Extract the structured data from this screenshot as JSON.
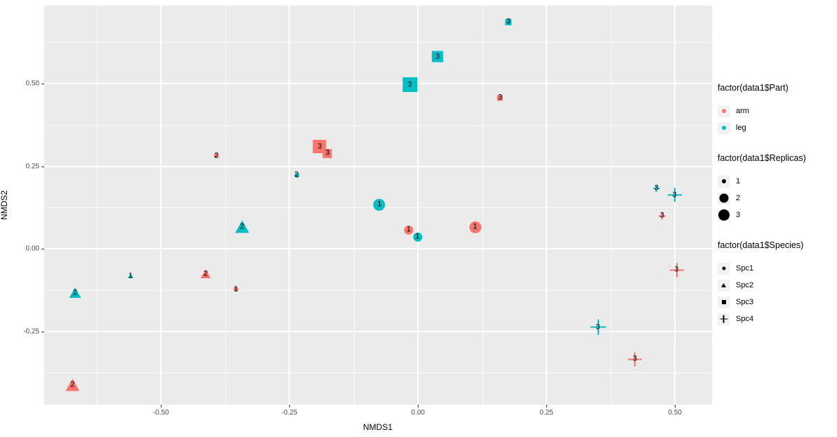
{
  "chart_data": {
    "type": "scatter",
    "title": "",
    "xlabel": "NMDS1",
    "ylabel": "NMDS2",
    "xlim": [
      -0.727,
      0.572
    ],
    "ylim": [
      -0.472,
      0.736
    ],
    "x_ticks": [
      -0.5,
      -0.25,
      0.0,
      0.25,
      0.5
    ],
    "x_tick_labels": [
      "-0.50",
      "-0.25",
      "0.00",
      "0.25",
      "0.50"
    ],
    "y_ticks": [
      0.5,
      0.25,
      0.0,
      -0.25
    ],
    "y_tick_labels": [
      "0.50",
      "0.25",
      "0.00",
      "-0.25"
    ],
    "x_minor": [
      -0.625,
      -0.375,
      -0.125,
      0.125,
      0.375
    ],
    "y_minor": [
      0.625,
      0.375,
      0.125,
      -0.125,
      -0.375
    ],
    "grid": "white major and minor gridlines on grey panel",
    "legend_position": "right",
    "colors": {
      "arm": "#F8766D",
      "leg": "#00BFC4",
      "panel_bg": "#EBEBEB",
      "legend_key_bg": "#F2F2F2",
      "axis_text": "#4D4D4D",
      "point_label": "#000000"
    },
    "points": [
      {
        "x": 0.176,
        "y": 0.687,
        "part": "leg",
        "species": "Spc3",
        "shape": "square",
        "size": 9,
        "label": "3"
      },
      {
        "x": 0.038,
        "y": 0.581,
        "part": "leg",
        "species": "Spc3",
        "shape": "square",
        "size": 16,
        "label": "3"
      },
      {
        "x": -0.016,
        "y": 0.496,
        "part": "leg",
        "species": "Spc3",
        "shape": "square",
        "size": 21,
        "label": "3"
      },
      {
        "x": 0.16,
        "y": 0.457,
        "part": "arm",
        "species": "Spc3",
        "shape": "square",
        "size": 8,
        "label": "3"
      },
      {
        "x": -0.191,
        "y": 0.309,
        "part": "arm",
        "species": "Spc3",
        "shape": "square",
        "size": 19,
        "label": "3"
      },
      {
        "x": -0.176,
        "y": 0.289,
        "part": "arm",
        "species": "Spc3",
        "shape": "square",
        "size": 13,
        "label": "3"
      },
      {
        "x": -0.392,
        "y": 0.281,
        "part": "arm",
        "species": "Spc1",
        "shape": "circle",
        "size": 7,
        "label": "2"
      },
      {
        "x": -0.236,
        "y": 0.223,
        "part": "leg",
        "species": "Spc1",
        "shape": "circle",
        "size": 7,
        "label": "2"
      },
      {
        "x": -0.075,
        "y": 0.134,
        "part": "leg",
        "species": "Spc1",
        "shape": "circle",
        "size": 17,
        "label": "1"
      },
      {
        "x": -0.018,
        "y": 0.057,
        "part": "arm",
        "species": "Spc1",
        "shape": "circle",
        "size": 13,
        "label": "1"
      },
      {
        "x": -0.001,
        "y": 0.036,
        "part": "leg",
        "species": "Spc1",
        "shape": "circle",
        "size": 13,
        "label": "1"
      },
      {
        "x": 0.111,
        "y": 0.066,
        "part": "arm",
        "species": "Spc1",
        "shape": "circle",
        "size": 17,
        "label": "1"
      },
      {
        "x": -0.342,
        "y": 0.066,
        "part": "leg",
        "species": "Spc2",
        "shape": "triangle",
        "size": 20,
        "label": "2"
      },
      {
        "x": -0.413,
        "y": -0.077,
        "part": "arm",
        "species": "Spc2",
        "shape": "triangle",
        "size": 15,
        "label": "2"
      },
      {
        "x": -0.559,
        "y": -0.083,
        "part": "leg",
        "species": "Spc2",
        "shape": "triangle",
        "size": 8,
        "label": "1"
      },
      {
        "x": -0.354,
        "y": -0.123,
        "part": "arm",
        "species": "Spc1",
        "shape": "circle",
        "size": 7,
        "label": "1"
      },
      {
        "x": -0.667,
        "y": -0.134,
        "part": "leg",
        "species": "Spc2",
        "shape": "triangle",
        "size": 17,
        "label": "2"
      },
      {
        "x": -0.672,
        "y": -0.413,
        "part": "arm",
        "species": "Spc2",
        "shape": "triangle",
        "size": 20,
        "label": "2"
      },
      {
        "x": 0.464,
        "y": 0.183,
        "part": "leg",
        "species": "Spc4",
        "shape": "plus",
        "size": 9,
        "label": "3"
      },
      {
        "x": 0.499,
        "y": 0.162,
        "part": "leg",
        "species": "Spc4",
        "shape": "plus",
        "size": 20,
        "label": "3"
      },
      {
        "x": 0.475,
        "y": 0.1,
        "part": "arm",
        "species": "Spc4",
        "shape": "plus",
        "size": 10,
        "label": "3"
      },
      {
        "x": 0.503,
        "y": -0.064,
        "part": "arm",
        "species": "Spc4",
        "shape": "plus",
        "size": 20,
        "label": "3"
      },
      {
        "x": 0.35,
        "y": -0.238,
        "part": "leg",
        "species": "Spc4",
        "shape": "plus",
        "size": 22,
        "label": "3"
      },
      {
        "x": 0.422,
        "y": -0.334,
        "part": "arm",
        "species": "Spc4",
        "shape": "plus",
        "size": 20,
        "label": "3"
      }
    ],
    "legends": [
      {
        "title": "factor(data1$Part)",
        "entries": [
          {
            "label": "arm",
            "glyph": "circle",
            "color": "#F8766D",
            "size": 6
          },
          {
            "label": "leg",
            "glyph": "circle",
            "color": "#00BFC4",
            "size": 6
          }
        ]
      },
      {
        "title": "factor(data1$Replicas)",
        "entries": [
          {
            "label": "1",
            "glyph": "circle",
            "color": "#000000",
            "size": 6
          },
          {
            "label": "2",
            "glyph": "circle",
            "color": "#000000",
            "size": 13
          },
          {
            "label": "3",
            "glyph": "circle",
            "color": "#000000",
            "size": 16
          }
        ]
      },
      {
        "title": "factor(data1$Species)",
        "entries": [
          {
            "label": "Spc1",
            "glyph": "circle",
            "color": "#000000",
            "size": 5
          },
          {
            "label": "Spc2",
            "glyph": "triangle",
            "color": "#000000",
            "size": 7
          },
          {
            "label": "Spc3",
            "glyph": "square",
            "color": "#000000",
            "size": 6
          },
          {
            "label": "Spc4",
            "glyph": "plus",
            "color": "#000000",
            "size": 11
          }
        ]
      }
    ]
  }
}
